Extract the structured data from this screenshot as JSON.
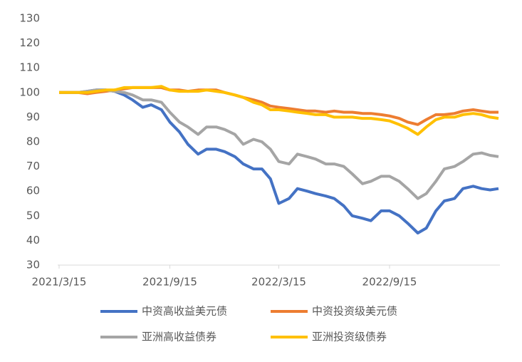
{
  "chart_data": {
    "type": "line",
    "x": [
      "2021/3/15",
      "2021/4/1",
      "2021/4/15",
      "2021/5/1",
      "2021/5/15",
      "2021/6/1",
      "2021/6/15",
      "2021/7/1",
      "2021/7/15",
      "2021/8/1",
      "2021/8/15",
      "2021/9/1",
      "2021/9/15",
      "2021/10/1",
      "2021/10/15",
      "2021/11/1",
      "2021/11/15",
      "2021/12/1",
      "2021/12/15",
      "2022/1/1",
      "2022/1/15",
      "2022/2/1",
      "2022/2/15",
      "2022/3/1",
      "2022/3/15",
      "2022/4/1",
      "2022/4/15",
      "2022/5/1",
      "2022/5/15",
      "2022/6/1",
      "2022/6/15",
      "2022/7/1",
      "2022/7/15",
      "2022/8/1",
      "2022/8/15",
      "2022/9/1",
      "2022/9/15",
      "2022/10/1",
      "2022/10/15",
      "2022/11/1",
      "2022/11/15",
      "2022/12/1",
      "2022/12/15",
      "2023/1/1",
      "2023/1/15",
      "2023/2/1",
      "2023/2/15",
      "2023/3/1",
      "2023/3/15"
    ],
    "series": [
      {
        "name": "中资高收益美元债",
        "color": "#4472c4",
        "values": [
          100,
          100,
          100,
          100.5,
          101,
          101,
          100.5,
          99,
          97,
          94,
          95,
          93,
          88,
          84,
          79,
          75,
          77,
          77,
          76,
          74,
          71,
          69,
          69,
          65,
          55,
          57,
          61,
          60,
          59,
          58,
          57,
          54,
          50,
          49,
          48,
          52,
          52,
          50,
          47,
          43,
          45,
          52,
          56,
          57,
          61,
          62,
          61,
          60.5,
          61
        ]
      },
      {
        "name": "中资投资级美元债",
        "color": "#ed7d31",
        "values": [
          100,
          100,
          100,
          99.5,
          100,
          100.5,
          101,
          101.5,
          102,
          102,
          102,
          102,
          101,
          101,
          100.5,
          101,
          101,
          101,
          100,
          99,
          98,
          97,
          96,
          94.5,
          94,
          93.5,
          93,
          92.5,
          92.5,
          92,
          92.5,
          92,
          92,
          91.5,
          91.5,
          91,
          90.5,
          89.5,
          88,
          87,
          89,
          91,
          91,
          91.5,
          92.5,
          93,
          92.5,
          92,
          92
        ]
      },
      {
        "name": "亚洲高收益债券",
        "color": "#a5a5a5",
        "values": [
          100,
          100,
          100,
          100.5,
          101,
          101,
          100.5,
          100,
          99,
          97,
          97,
          96,
          92,
          88,
          86,
          83,
          86,
          86,
          85,
          83,
          79,
          81,
          80,
          77,
          72,
          71,
          75,
          74,
          73,
          71,
          71,
          70,
          67,
          63,
          64,
          66,
          66,
          64,
          61,
          57,
          59,
          64,
          69,
          70,
          72,
          75,
          75.5,
          74.5,
          74
        ]
      },
      {
        "name": "亚洲投资级债券",
        "color": "#ffc000",
        "values": [
          100,
          100,
          100,
          100,
          100.5,
          101,
          101,
          102,
          102,
          102,
          102,
          102.5,
          101,
          100.5,
          100.5,
          100.5,
          101,
          100.5,
          100,
          99,
          98,
          96,
          95,
          93,
          93,
          92.5,
          92,
          91.5,
          91,
          91,
          90,
          90,
          90,
          89.5,
          89.5,
          89,
          88.5,
          87,
          85.5,
          83,
          86,
          89,
          90,
          90,
          91,
          91.5,
          91,
          90,
          89.5
        ]
      }
    ],
    "xlim": [
      "2021/3/15",
      "2023/3/15"
    ],
    "xticks": [
      "2021/3/15",
      "2021/9/15",
      "2022/3/15",
      "2022/9/15"
    ],
    "ylim": [
      30,
      130
    ],
    "yticks": [
      30,
      40,
      50,
      60,
      70,
      80,
      90,
      100,
      110,
      120,
      130
    ],
    "grid": false
  }
}
